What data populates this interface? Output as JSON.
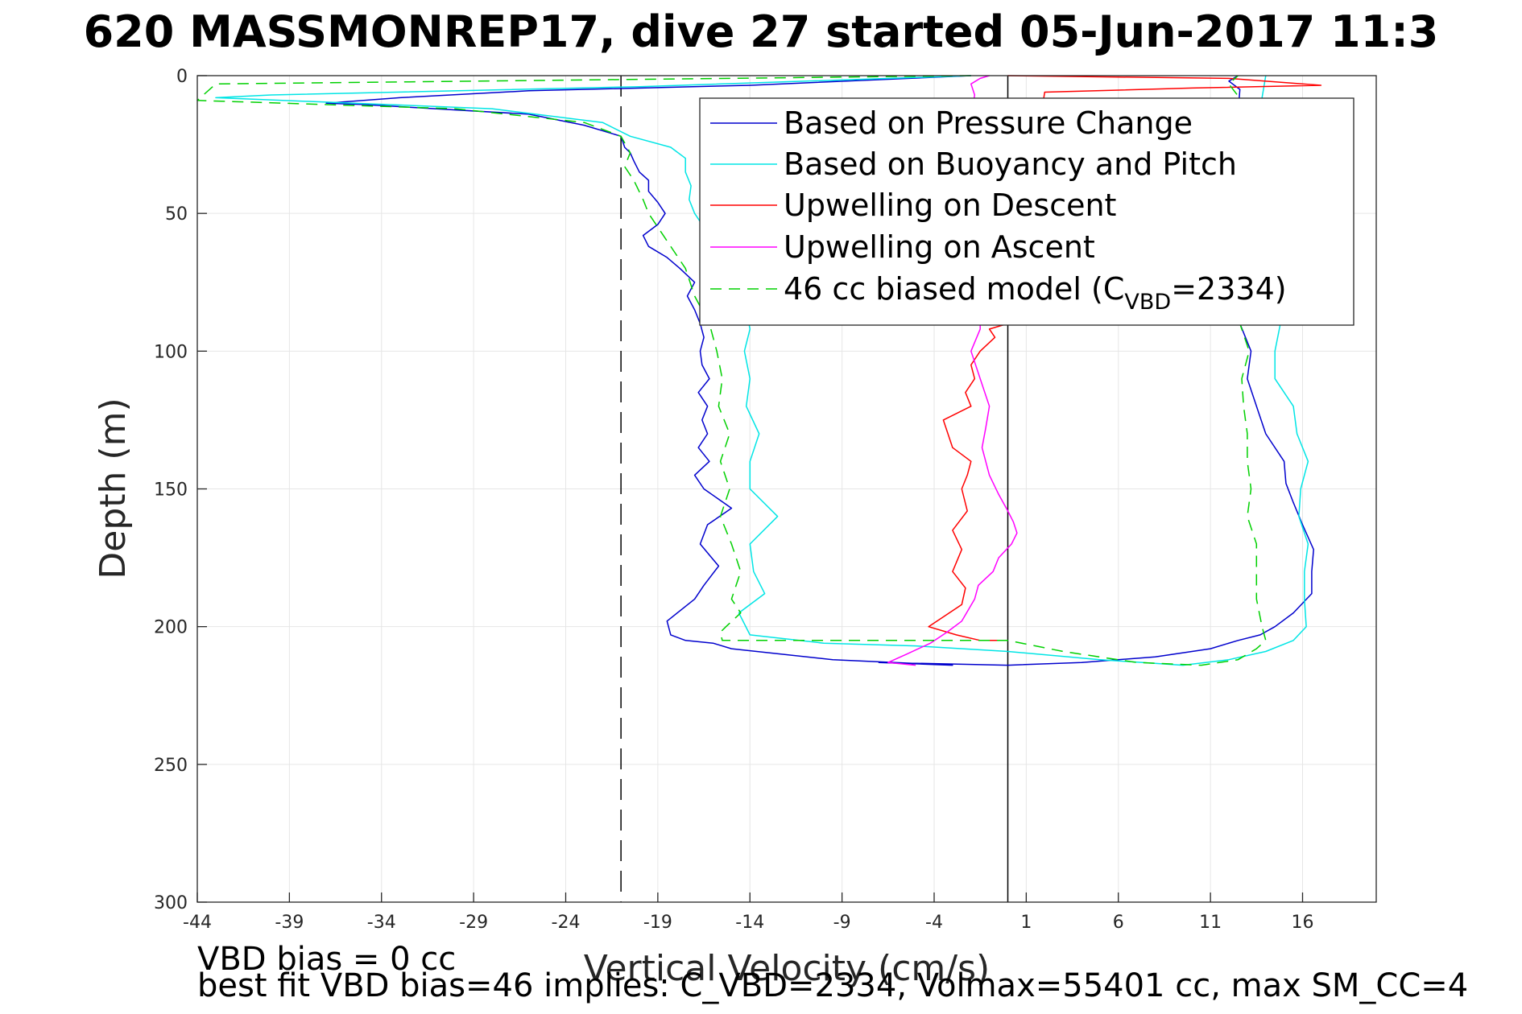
{
  "figure": {
    "title": "620 MASSMONREP17, dive 27 started 05-Jun-2017 11:3",
    "footer_line1": "VBD bias = 0 cc",
    "footer_line2": "best fit VBD bias=46 implies: C_VBD=2334, Volmax=55401 cc, max SM_CC=4"
  },
  "chart_data": {
    "type": "line",
    "title": "620 MASSMONREP17, dive 27 started 05-Jun-2017 11:3",
    "xlabel": "Vertical Velocity (cm/s)",
    "ylabel": "Depth (m)",
    "xlim": [
      -44,
      20
    ],
    "ylim": [
      300,
      0
    ],
    "y_reversed": true,
    "grid": true,
    "legend_position": "top-right",
    "xticks": [
      "-44",
      "-39",
      "-34",
      "-29",
      "-24",
      "-19",
      "-14",
      "-9",
      "-4",
      "1",
      "6",
      "11",
      "16"
    ],
    "yticks": [
      "0",
      "50",
      "100",
      "150",
      "200",
      "250",
      "300"
    ],
    "reference_lines": [
      {
        "axis": "x",
        "value": -21,
        "style": "dashed",
        "color": "#000000"
      },
      {
        "axis": "x",
        "value": 0,
        "style": "solid",
        "color": "#000000"
      }
    ],
    "series": [
      {
        "name": "Based on Pressure Change",
        "color": "#0000cd",
        "dash": "solid",
        "x": [
          -2,
          -14,
          -26,
          -33,
          -37,
          -35,
          -26,
          -23,
          -21,
          -20.8,
          -20.5,
          -20.3,
          -20,
          -19.5,
          -19.5,
          -19,
          -18.6,
          -19,
          -19.8,
          -19.5,
          -18.5,
          -17.8,
          -17,
          -17.4,
          -17,
          -16.7,
          -16.5,
          -16.7,
          -16.6,
          -16.2,
          -16.8,
          -16.3,
          -16.6,
          -16.3,
          -16.8,
          -16.2,
          -17,
          -16.5,
          -15,
          -16.3,
          -16.7,
          -15.7,
          -16.5,
          -17,
          -18.5,
          -18.3,
          -17.5,
          -16,
          -15,
          -9.5,
          -3,
          -7,
          0,
          4,
          8,
          11,
          12.5,
          13.7,
          14.5,
          15.5,
          16.5,
          16.5,
          16.6,
          16,
          15.5,
          15.1,
          15,
          14,
          13.5,
          13,
          13.2,
          12.6,
          12.6,
          12.3,
          12.3,
          12.6,
          12,
          12.5
        ],
        "y": [
          0,
          3.5,
          5.5,
          8,
          10,
          10.5,
          14,
          18,
          22,
          26,
          28,
          31,
          35,
          38,
          42,
          46,
          50,
          54,
          58,
          62,
          66,
          70,
          75,
          80,
          85,
          90,
          95,
          100,
          105,
          110,
          115,
          120,
          125,
          130,
          135,
          140,
          145,
          150,
          157,
          163,
          170,
          178,
          185,
          190,
          198,
          203,
          205,
          206,
          208,
          212,
          214,
          213,
          214,
          213,
          211,
          208,
          205,
          203,
          200,
          195,
          188,
          180,
          172,
          163,
          155,
          148,
          140,
          130,
          120,
          110,
          100,
          90,
          80,
          60,
          30,
          5,
          2,
          0
        ]
      },
      {
        "name": "Based on Buoyancy and Pitch",
        "color": "#00e5e5",
        "dash": "solid",
        "x": [
          -2,
          -20,
          -40,
          -43,
          -28,
          -22,
          -20.5,
          -18.3,
          -17.5,
          -17.5,
          -17.2,
          -17.3,
          -17,
          -16.5,
          -16.3,
          -15.5,
          -15,
          -14.5,
          -14.3,
          -14.2,
          -14,
          -14.3,
          -14,
          -14.2,
          -13.5,
          -14,
          -14,
          -12.5,
          -14,
          -13.8,
          -13.2,
          -14.6,
          -14,
          -10,
          -5,
          0,
          5,
          9.5,
          12,
          14,
          15.5,
          16.2,
          16.1,
          16.1,
          16.3,
          15.8,
          15.9,
          16.3,
          15.7,
          15.5,
          14.5,
          14.5,
          14.8,
          14.5,
          14.8,
          14.3,
          13.8,
          14
        ],
        "y": [
          0,
          4,
          7,
          8,
          12,
          17,
          22,
          26,
          30,
          35,
          40,
          45,
          50,
          55,
          60,
          65,
          70,
          75,
          80,
          85,
          92,
          100,
          110,
          120,
          130,
          140,
          150,
          160,
          170,
          180,
          188,
          195,
          203,
          206,
          207,
          209,
          212,
          214,
          212,
          209,
          205,
          200,
          190,
          180,
          170,
          160,
          150,
          140,
          130,
          120,
          110,
          100,
          90,
          75,
          50,
          30,
          8,
          0
        ]
      },
      {
        "name": "Upwelling on Descent",
        "color": "#ff0000",
        "dash": "solid",
        "x": [
          0,
          6,
          12,
          17,
          10,
          2,
          0,
          -1,
          -0.7,
          -1.5,
          -2,
          -1.8,
          -2.3,
          -2,
          -3.5,
          -3,
          -2,
          -2.2,
          -2.5,
          -2.2,
          -3,
          -2.5,
          -3,
          -2.3,
          -2.5,
          -4.3,
          -2.8,
          -1.5,
          0
        ],
        "y": [
          0,
          0.5,
          1,
          3.5,
          4.5,
          6,
          90,
          92,
          95,
          100,
          105,
          110,
          115,
          120,
          125,
          135,
          140,
          145,
          150,
          158,
          165,
          172,
          180,
          186,
          192,
          200,
          203,
          205,
          205
        ]
      },
      {
        "name": "Upwelling on Ascent",
        "color": "#ff00ff",
        "dash": "solid",
        "x": [
          -5,
          -6.5,
          -5.5,
          -4.2,
          -3.3,
          -2.5,
          -1.8,
          -1.6,
          -0.8,
          -0.5,
          0.2,
          0.5,
          0.3,
          0,
          -0.5,
          -1,
          -1.4,
          -1.2,
          -1,
          -1.5,
          -2,
          -1.5,
          -1.5,
          -2.5,
          -2,
          -1.8,
          -2,
          -1.5,
          -1
        ],
        "y": [
          214,
          213,
          210,
          206,
          202,
          198,
          190,
          185,
          180,
          175,
          170,
          166,
          162,
          158,
          152,
          145,
          135,
          128,
          120,
          110,
          100,
          92,
          80,
          40,
          15,
          7,
          3,
          1,
          0
        ]
      },
      {
        "name": "46 cc biased model (C_VBD=2334)",
        "color": "#00d000",
        "dash": "dashed",
        "x": [
          -2,
          -22,
          -43,
          -44,
          -30,
          -23,
          -21,
          -20.5,
          -20.8,
          -20.3,
          -19.8,
          -19.5,
          -19,
          -18.5,
          -18,
          -17.5,
          -17,
          -16.2,
          -15.8,
          -15.5,
          -15.7,
          -15.1,
          -15.6,
          -15.1,
          -15.6,
          -15,
          -14.5,
          -15,
          -14.5,
          -15.3,
          -15.6,
          -15.5,
          -10,
          -5,
          0,
          3,
          7,
          10.5,
          12.5,
          13.5,
          14,
          13.8,
          13.5,
          13.5,
          13.5,
          13,
          13.2,
          13,
          13,
          12.8,
          12.7,
          13.1,
          12.6,
          13.3,
          12.7,
          12.8,
          12,
          12.5
        ],
        "y": [
          0,
          1.5,
          3,
          9,
          12,
          17,
          22,
          28,
          33,
          38,
          45,
          50,
          55,
          60,
          65,
          70,
          80,
          90,
          100,
          110,
          120,
          130,
          140,
          150,
          160,
          170,
          180,
          190,
          195,
          200,
          202,
          205,
          205,
          205,
          205,
          209,
          213,
          214,
          212,
          208,
          205,
          200,
          190,
          180,
          170,
          160,
          150,
          140,
          130,
          120,
          110,
          100,
          90,
          60,
          30,
          10,
          3,
          0
        ]
      }
    ],
    "legend": [
      {
        "label": "Based on Pressure Change",
        "color": "#0000cd",
        "dash": "solid"
      },
      {
        "label": "Based on Buoyancy and Pitch",
        "color": "#00e5e5",
        "dash": "solid"
      },
      {
        "label": "Upwelling on Descent",
        "color": "#ff0000",
        "dash": "solid"
      },
      {
        "label": "Upwelling on Ascent",
        "color": "#ff00ff",
        "dash": "solid"
      },
      {
        "label_main": "46 cc biased model (C",
        "label_sub": "VBD",
        "label_end": "=2334)",
        "color": "#00d000",
        "dash": "dashed"
      }
    ]
  }
}
